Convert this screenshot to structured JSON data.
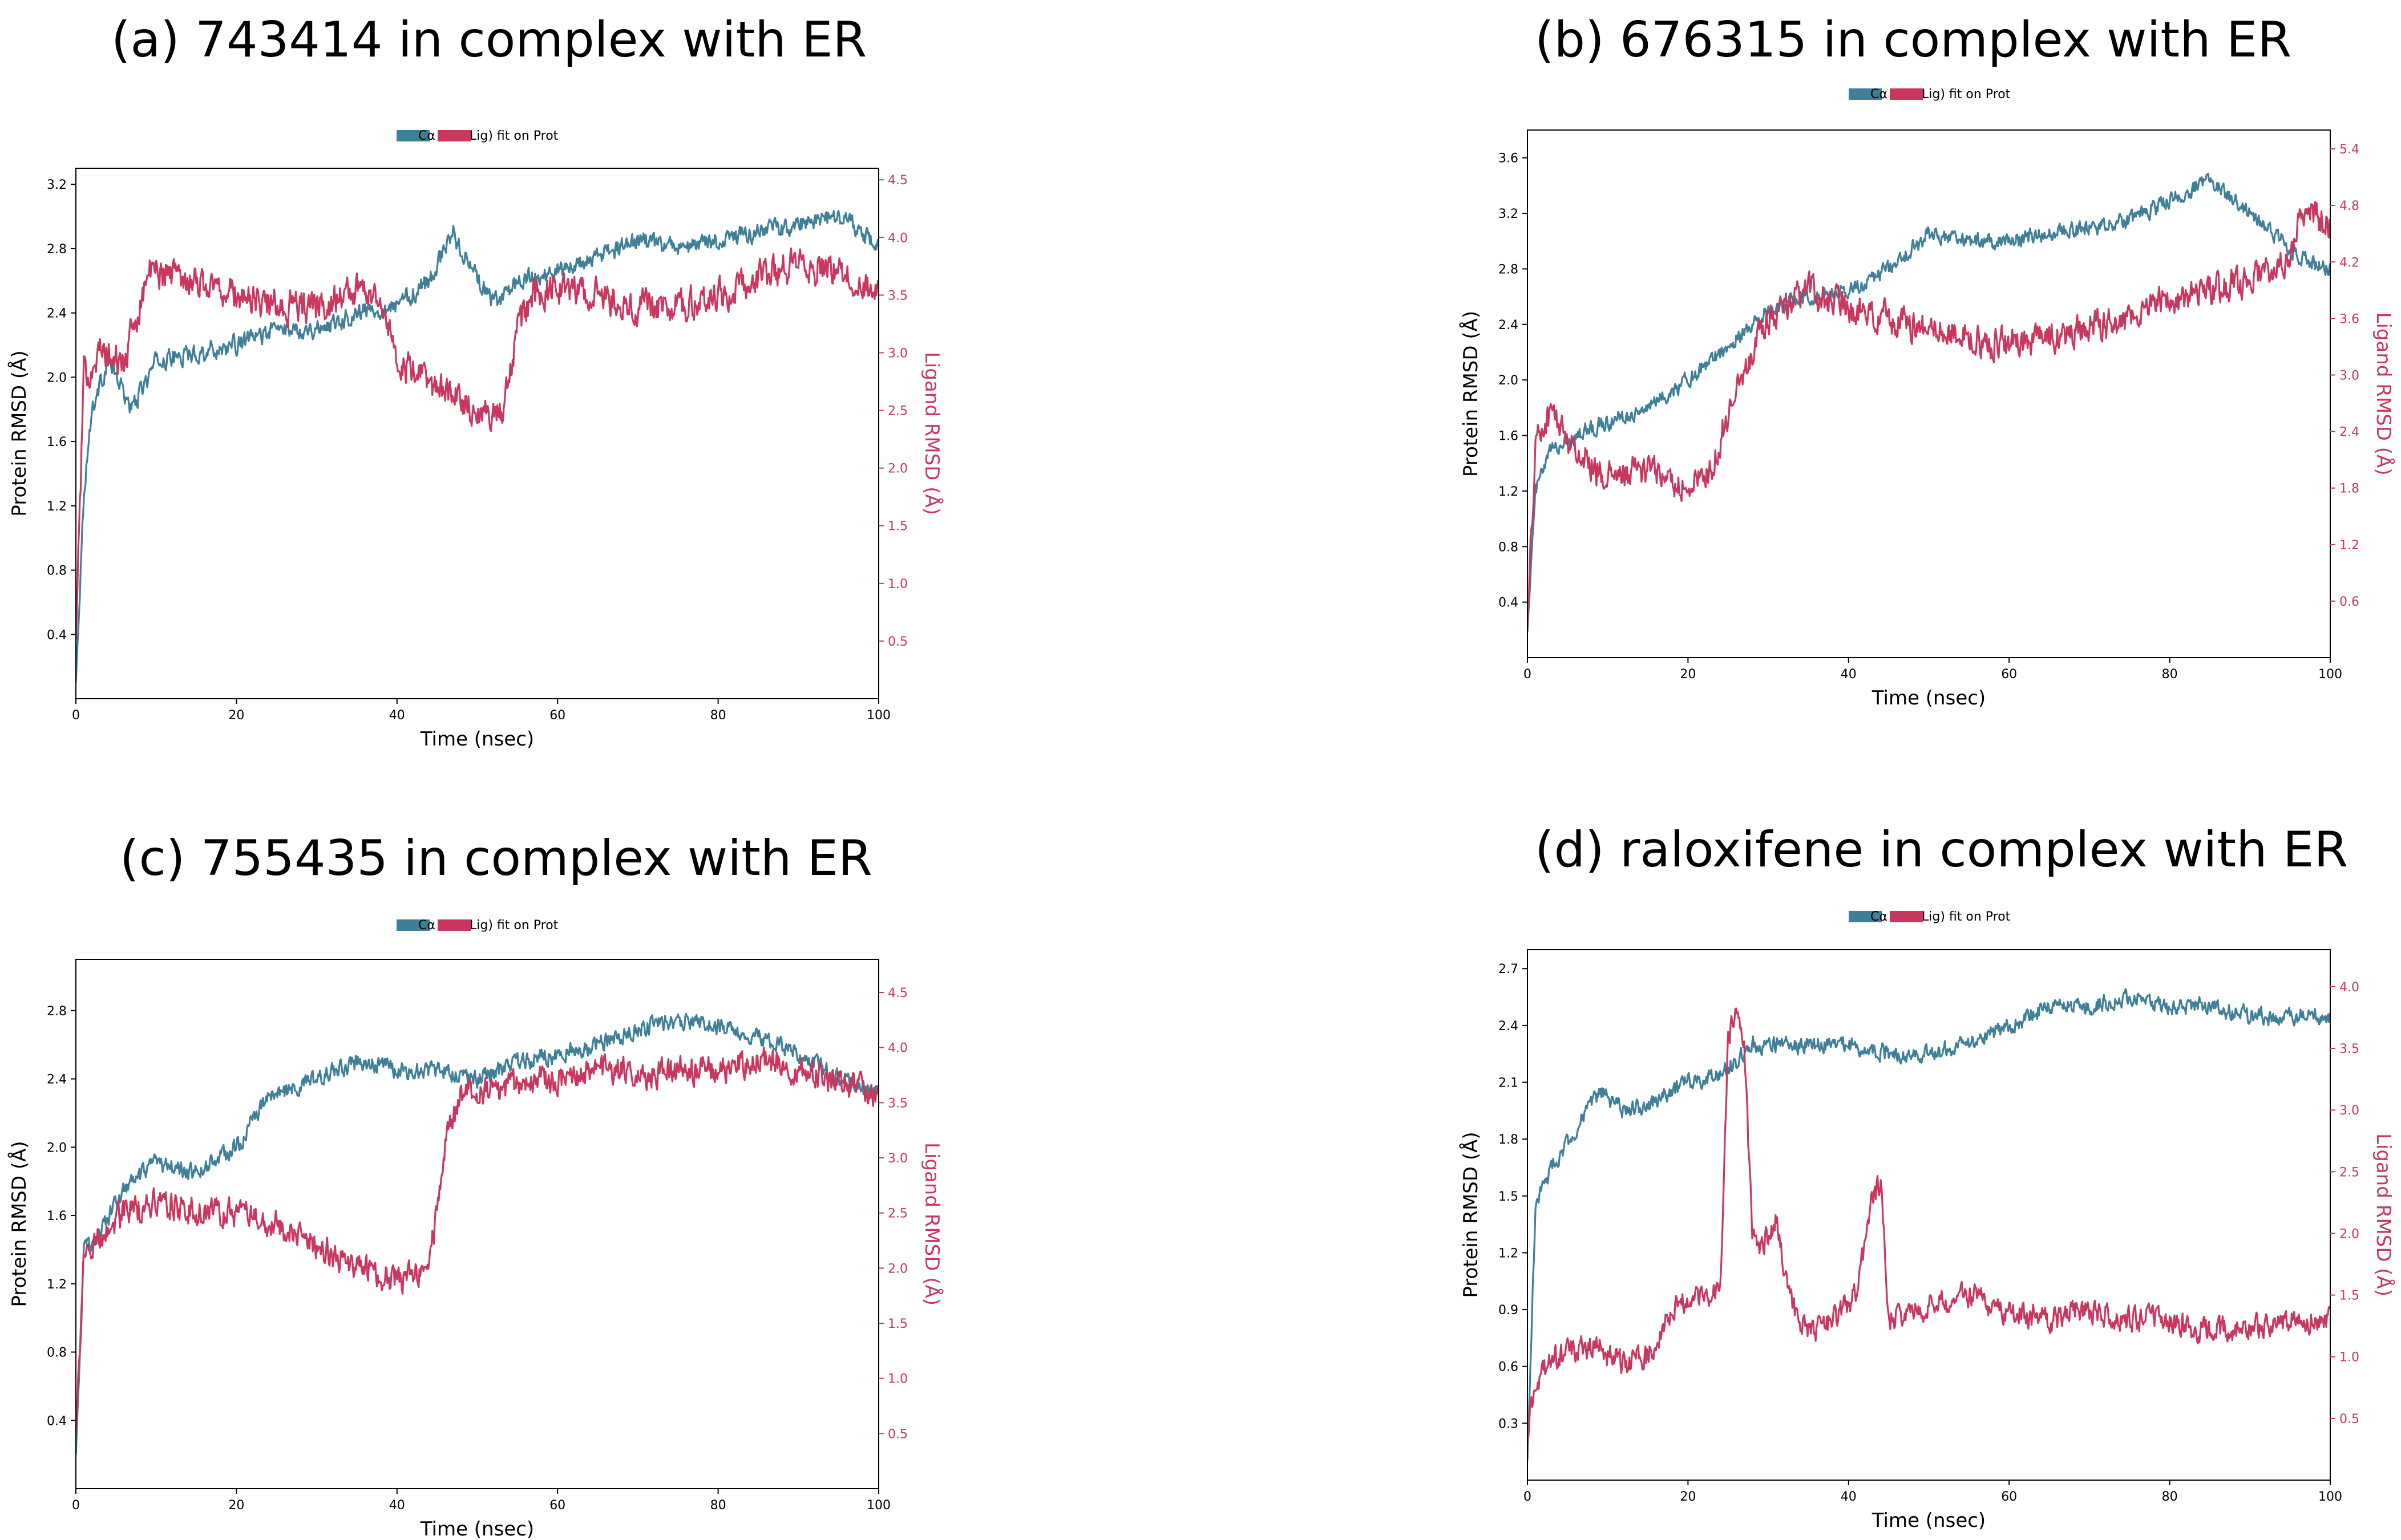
{
  "colors": {
    "protein": "#3F7F98",
    "ligand": "#C9375F",
    "axis": "#000000"
  },
  "legend": {
    "ca_label": "Cα",
    "lig_label": "Lig) fit on Prot"
  },
  "chart_data": [
    {
      "id": "a",
      "type": "line",
      "title": "(a) 743414 in complex with ER",
      "xlabel": "Time (nsec)",
      "ylabel": "Protein RMSD (Å)",
      "y2label": "Ligand RMSD (Å)",
      "xlim": [
        0,
        100
      ],
      "ylim": [
        0,
        3.3
      ],
      "y2lim": [
        0,
        4.6
      ],
      "xticks": [
        0,
        20,
        40,
        60,
        80,
        100
      ],
      "yticks": [
        0.4,
        0.8,
        1.2,
        1.6,
        2.0,
        2.4,
        2.8,
        3.2
      ],
      "y2ticks": [
        0.5,
        1.0,
        1.5,
        2.0,
        2.5,
        3.0,
        3.5,
        4.0,
        4.5
      ],
      "series": [
        {
          "name": "Cα",
          "axis": "left",
          "noise": 0.09,
          "x": [
            0,
            1,
            2,
            4,
            7,
            10,
            15,
            20,
            25,
            30,
            35,
            40,
            44,
            47,
            49,
            52,
            55,
            60,
            65,
            70,
            75,
            80,
            85,
            90,
            95,
            98,
            100
          ],
          "values": [
            0.1,
            1.3,
            1.8,
            2.1,
            1.8,
            2.1,
            2.15,
            2.2,
            2.3,
            2.3,
            2.4,
            2.45,
            2.6,
            2.9,
            2.7,
            2.45,
            2.6,
            2.65,
            2.75,
            2.85,
            2.8,
            2.85,
            2.9,
            2.95,
            3.0,
            2.9,
            2.8
          ]
        },
        {
          "name": "Lig",
          "axis": "right",
          "noise": 0.22,
          "x": [
            0,
            1,
            3,
            6,
            9,
            12,
            16,
            20,
            25,
            30,
            35,
            38,
            40,
            45,
            50,
            53,
            55,
            57,
            60,
            65,
            70,
            75,
            80,
            85,
            90,
            95,
            100
          ],
          "values": [
            0.5,
            2.8,
            3.0,
            2.9,
            3.7,
            3.7,
            3.6,
            3.5,
            3.4,
            3.4,
            3.55,
            3.5,
            2.9,
            2.7,
            2.5,
            2.45,
            3.2,
            3.5,
            3.55,
            3.5,
            3.4,
            3.4,
            3.5,
            3.65,
            3.75,
            3.7,
            3.5
          ]
        }
      ]
    },
    {
      "id": "b",
      "type": "line",
      "title": "(b) 676315 in complex with ER",
      "xlabel": "Time (nsec)",
      "ylabel": "Protein RMSD (Å)",
      "y2label": "Ligand RMSD (Å)",
      "xlim": [
        0,
        100
      ],
      "ylim": [
        0,
        3.8
      ],
      "y2lim": [
        0,
        5.6
      ],
      "xticks": [
        0,
        20,
        40,
        60,
        80,
        100
      ],
      "yticks": [
        0.4,
        0.8,
        1.2,
        1.6,
        2.0,
        2.4,
        2.8,
        3.2,
        3.6
      ],
      "y2ticks": [
        0.6,
        1.2,
        1.8,
        2.4,
        3.0,
        3.6,
        4.2,
        4.8,
        5.4
      ],
      "series": [
        {
          "name": "Cα",
          "axis": "left",
          "noise": 0.09,
          "x": [
            0,
            1,
            3,
            6,
            10,
            15,
            20,
            25,
            30,
            35,
            40,
            45,
            50,
            55,
            60,
            65,
            70,
            75,
            80,
            85,
            88,
            92,
            96,
            100
          ],
          "values": [
            0.2,
            1.2,
            1.5,
            1.6,
            1.7,
            1.8,
            2.0,
            2.25,
            2.5,
            2.6,
            2.65,
            2.8,
            3.05,
            3.0,
            3.0,
            3.05,
            3.1,
            3.15,
            3.3,
            3.45,
            3.3,
            3.1,
            2.9,
            2.8
          ]
        },
        {
          "name": "Lig",
          "axis": "right",
          "noise": 0.26,
          "x": [
            0,
            1,
            3,
            6,
            10,
            15,
            20,
            23,
            26,
            30,
            35,
            40,
            45,
            50,
            55,
            60,
            65,
            70,
            75,
            80,
            85,
            90,
            95,
            97,
            100
          ],
          "values": [
            0.3,
            2.3,
            2.6,
            2.2,
            1.9,
            2.0,
            1.8,
            2.0,
            2.9,
            3.6,
            3.9,
            3.7,
            3.6,
            3.5,
            3.4,
            3.3,
            3.4,
            3.5,
            3.6,
            3.8,
            3.9,
            4.0,
            4.3,
            4.8,
            4.6
          ]
        }
      ]
    },
    {
      "id": "c",
      "type": "line",
      "title": "(c) 755435 in complex with ER",
      "xlabel": "Time (nsec)",
      "ylabel": "Protein RMSD (Å)",
      "y2label": "Ligand RMSD (Å)",
      "xlim": [
        0,
        100
      ],
      "ylim": [
        0,
        3.1
      ],
      "y2lim": [
        0,
        4.8
      ],
      "xticks": [
        0,
        20,
        40,
        60,
        80,
        100
      ],
      "yticks": [
        0.4,
        0.8,
        1.2,
        1.6,
        2.0,
        2.4,
        2.8
      ],
      "y2ticks": [
        0.5,
        1.0,
        1.5,
        2.0,
        2.5,
        3.0,
        3.5,
        4.0,
        4.5
      ],
      "series": [
        {
          "name": "Cα",
          "axis": "left",
          "noise": 0.08,
          "x": [
            0,
            1,
            3,
            6,
            10,
            15,
            20,
            24,
            28,
            32,
            36,
            40,
            45,
            50,
            55,
            60,
            65,
            70,
            75,
            80,
            85,
            90,
            95,
            100
          ],
          "values": [
            0.2,
            1.4,
            1.5,
            1.75,
            1.9,
            1.85,
            2.0,
            2.3,
            2.35,
            2.45,
            2.5,
            2.45,
            2.45,
            2.4,
            2.5,
            2.55,
            2.6,
            2.7,
            2.75,
            2.7,
            2.65,
            2.55,
            2.4,
            2.3
          ]
        },
        {
          "name": "Lig",
          "axis": "right",
          "noise": 0.2,
          "x": [
            0,
            1,
            3,
            6,
            10,
            15,
            20,
            25,
            30,
            35,
            40,
            44,
            46,
            48,
            52,
            56,
            60,
            65,
            70,
            75,
            80,
            85,
            90,
            95,
            100
          ],
          "values": [
            0.5,
            2.1,
            2.3,
            2.5,
            2.6,
            2.5,
            2.5,
            2.4,
            2.2,
            2.0,
            1.9,
            2.0,
            3.1,
            3.6,
            3.6,
            3.7,
            3.7,
            3.8,
            3.75,
            3.8,
            3.8,
            3.9,
            3.8,
            3.7,
            3.55
          ]
        }
      ]
    },
    {
      "id": "d",
      "type": "line",
      "title": "(d) raloxifene in complex with ER",
      "xlabel": "Time (nsec)",
      "ylabel": "Protein RMSD (Å)",
      "y2label": "Ligand RMSD (Å)",
      "xlim": [
        0,
        100
      ],
      "ylim": [
        0,
        2.8
      ],
      "y2lim": [
        0,
        4.3
      ],
      "xticks": [
        0,
        20,
        40,
        60,
        80,
        100
      ],
      "yticks": [
        0.3,
        0.6,
        0.9,
        1.2,
        1.5,
        1.8,
        2.1,
        2.4,
        2.7
      ],
      "y2ticks": [
        0.5,
        1.0,
        1.5,
        2.0,
        2.5,
        3.0,
        3.5,
        4.0
      ],
      "series": [
        {
          "name": "Cα",
          "axis": "left",
          "noise": 0.07,
          "x": [
            0,
            1,
            3,
            6,
            9,
            12,
            16,
            20,
            24,
            26,
            28,
            32,
            36,
            40,
            45,
            50,
            55,
            60,
            65,
            70,
            75,
            80,
            85,
            90,
            95,
            100
          ],
          "values": [
            0.1,
            1.45,
            1.65,
            1.85,
            2.05,
            1.95,
            2.0,
            2.1,
            2.15,
            2.2,
            2.3,
            2.3,
            2.3,
            2.3,
            2.25,
            2.25,
            2.3,
            2.4,
            2.5,
            2.5,
            2.55,
            2.5,
            2.5,
            2.45,
            2.45,
            2.45
          ]
        },
        {
          "name": "Lig",
          "axis": "right",
          "noise": 0.16,
          "x": [
            0,
            1,
            4,
            8,
            12,
            15,
            18,
            21,
            24,
            25,
            26,
            27,
            28,
            29,
            31,
            33,
            35,
            38,
            41,
            43,
            44,
            45,
            50,
            55,
            60,
            65,
            70,
            75,
            80,
            85,
            90,
            95,
            100
          ],
          "values": [
            0.3,
            0.8,
            1.0,
            1.1,
            0.95,
            1.0,
            1.4,
            1.5,
            1.5,
            3.6,
            3.8,
            3.5,
            2.0,
            1.9,
            2.1,
            1.4,
            1.2,
            1.3,
            1.5,
            2.3,
            2.4,
            1.3,
            1.4,
            1.5,
            1.35,
            1.3,
            1.4,
            1.3,
            1.3,
            1.2,
            1.25,
            1.3,
            1.3
          ]
        }
      ]
    }
  ]
}
